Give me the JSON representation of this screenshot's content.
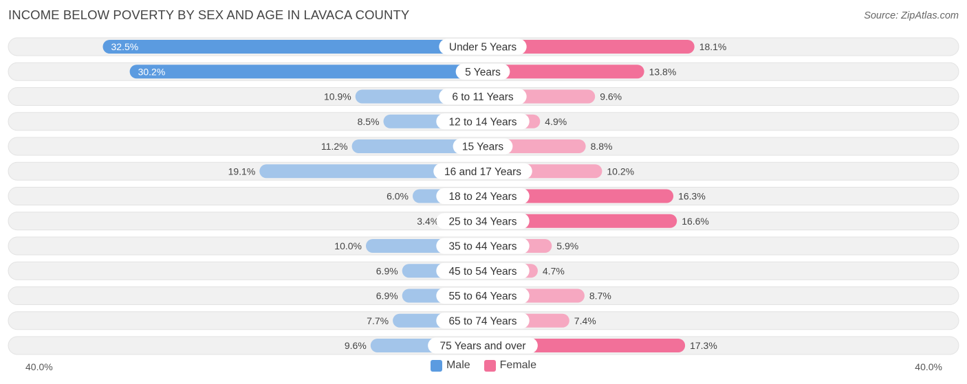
{
  "title": "INCOME BELOW POVERTY BY SEX AND AGE IN LAVACA COUNTY",
  "source": "Source: ZipAtlas.com",
  "axis": {
    "left_label": "40.0%",
    "right_label": "40.0%"
  },
  "legend": {
    "male_label": "Male",
    "female_label": "Female"
  },
  "colors": {
    "male_strong": "#5b9be0",
    "male_light": "#a3c5ea",
    "female_strong": "#f27099",
    "female_light": "#f6a8c1",
    "row_bg": "#f1f1f1",
    "row_border": "#e2e2e2"
  },
  "chart_data": {
    "type": "bar",
    "orientation": "horizontal-diverging",
    "title": "INCOME BELOW POVERTY BY SEX AND AGE IN LAVACA COUNTY",
    "xlim": [
      -40,
      40
    ],
    "unit": "%",
    "categories": [
      "Under 5 Years",
      "5 Years",
      "6 to 11 Years",
      "12 to 14 Years",
      "15 Years",
      "16 and 17 Years",
      "18 to 24 Years",
      "25 to 34 Years",
      "35 to 44 Years",
      "45 to 54 Years",
      "55 to 64 Years",
      "65 to 74 Years",
      "75 Years and over"
    ],
    "series": [
      {
        "name": "Male",
        "values": [
          32.5,
          30.2,
          10.9,
          8.5,
          11.2,
          19.1,
          6.0,
          3.4,
          10.0,
          6.9,
          6.9,
          7.7,
          9.6
        ],
        "labels": [
          "32.5%",
          "30.2%",
          "10.9%",
          "8.5%",
          "11.2%",
          "19.1%",
          "6.0%",
          "3.4%",
          "10.0%",
          "6.9%",
          "6.9%",
          "7.7%",
          "9.6%"
        ]
      },
      {
        "name": "Female",
        "values": [
          18.1,
          13.8,
          9.6,
          4.9,
          8.8,
          10.2,
          16.3,
          16.6,
          5.9,
          4.7,
          8.7,
          7.4,
          17.3
        ],
        "labels": [
          "18.1%",
          "13.8%",
          "9.6%",
          "4.9%",
          "8.8%",
          "10.2%",
          "16.3%",
          "16.6%",
          "5.9%",
          "4.7%",
          "8.7%",
          "7.4%",
          "17.3%"
        ]
      }
    ]
  }
}
